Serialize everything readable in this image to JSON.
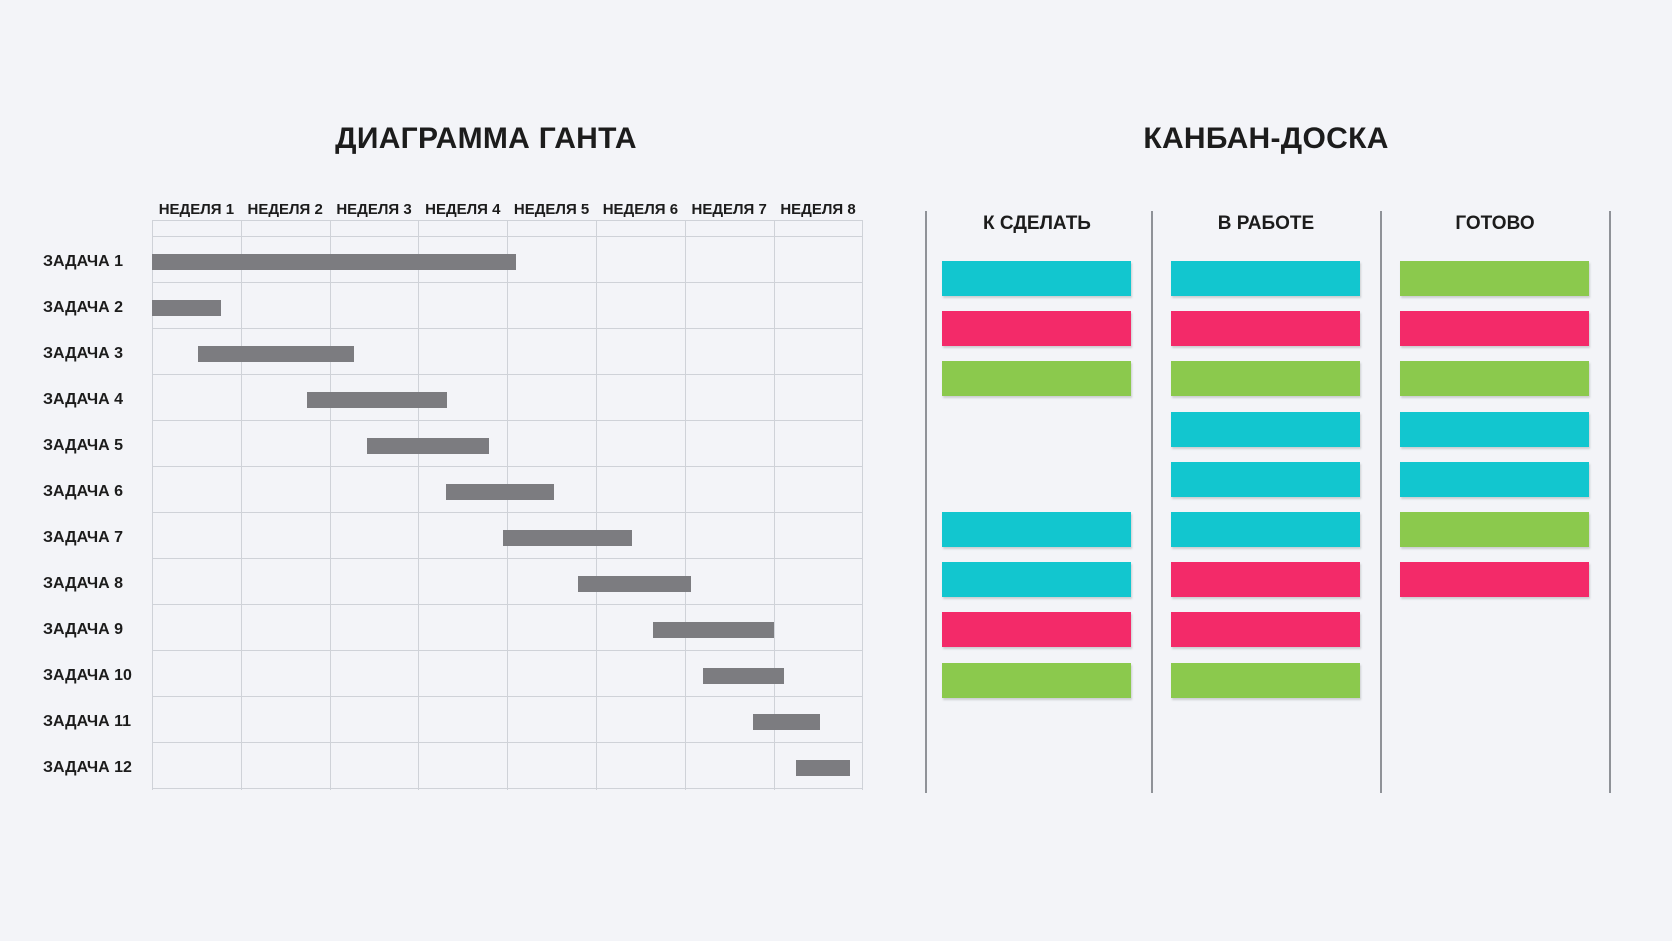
{
  "gantt": {
    "title": "ДИАГРАММА ГАНТА",
    "weeks": [
      "НЕДЕЛЯ 1",
      "НЕДЕЛЯ 2",
      "НЕДЕЛЯ 3",
      "НЕДЕЛЯ 4",
      "НЕДЕЛЯ 5",
      "НЕДЕЛЯ 6",
      "НЕДЕЛЯ 7",
      "НЕДЕЛЯ 8"
    ],
    "bar_color": "#7c7c80",
    "tasks": [
      {
        "label": "ЗАДАЧА 1",
        "start_week": 0.0,
        "end_week": 4.1
      },
      {
        "label": "ЗАДАЧА 2",
        "start_week": 0.0,
        "end_week": 0.78
      },
      {
        "label": "ЗАДАЧА 3",
        "start_week": 0.52,
        "end_week": 2.27
      },
      {
        "label": "ЗАДАЧА 4",
        "start_week": 1.75,
        "end_week": 3.32
      },
      {
        "label": "ЗАДАЧА 5",
        "start_week": 2.42,
        "end_week": 3.8
      },
      {
        "label": "ЗАДАЧА 6",
        "start_week": 3.31,
        "end_week": 4.53
      },
      {
        "label": "ЗАДАЧА 7",
        "start_week": 3.95,
        "end_week": 5.41
      },
      {
        "label": "ЗАДАЧА 8",
        "start_week": 4.8,
        "end_week": 6.07
      },
      {
        "label": "ЗАДАЧА 9",
        "start_week": 5.64,
        "end_week": 7.0
      },
      {
        "label": "ЗАДАЧА 10",
        "start_week": 6.2,
        "end_week": 7.12
      },
      {
        "label": "ЗАДАЧА 11",
        "start_week": 6.77,
        "end_week": 7.52
      },
      {
        "label": "ЗАДАЧА 12",
        "start_week": 7.25,
        "end_week": 7.86
      }
    ]
  },
  "kanban": {
    "title": "КАНБАН-ДОСКА",
    "colors": {
      "cyan": "#12c6cf",
      "pink": "#f32a69",
      "green": "#8bc94d"
    },
    "columns": [
      {
        "title": "К СДЕЛАТЬ",
        "cards": [
          "cyan",
          "pink",
          "green",
          null,
          null,
          "cyan",
          "cyan",
          "pink",
          "green"
        ]
      },
      {
        "title": "В РАБОТЕ",
        "cards": [
          "cyan",
          "pink",
          "green",
          "cyan",
          "cyan",
          "cyan",
          "pink",
          "pink",
          "green"
        ]
      },
      {
        "title": "ГОТОВО",
        "cards": [
          "green",
          "pink",
          "green",
          "cyan",
          "cyan",
          "green",
          "pink"
        ]
      }
    ]
  }
}
